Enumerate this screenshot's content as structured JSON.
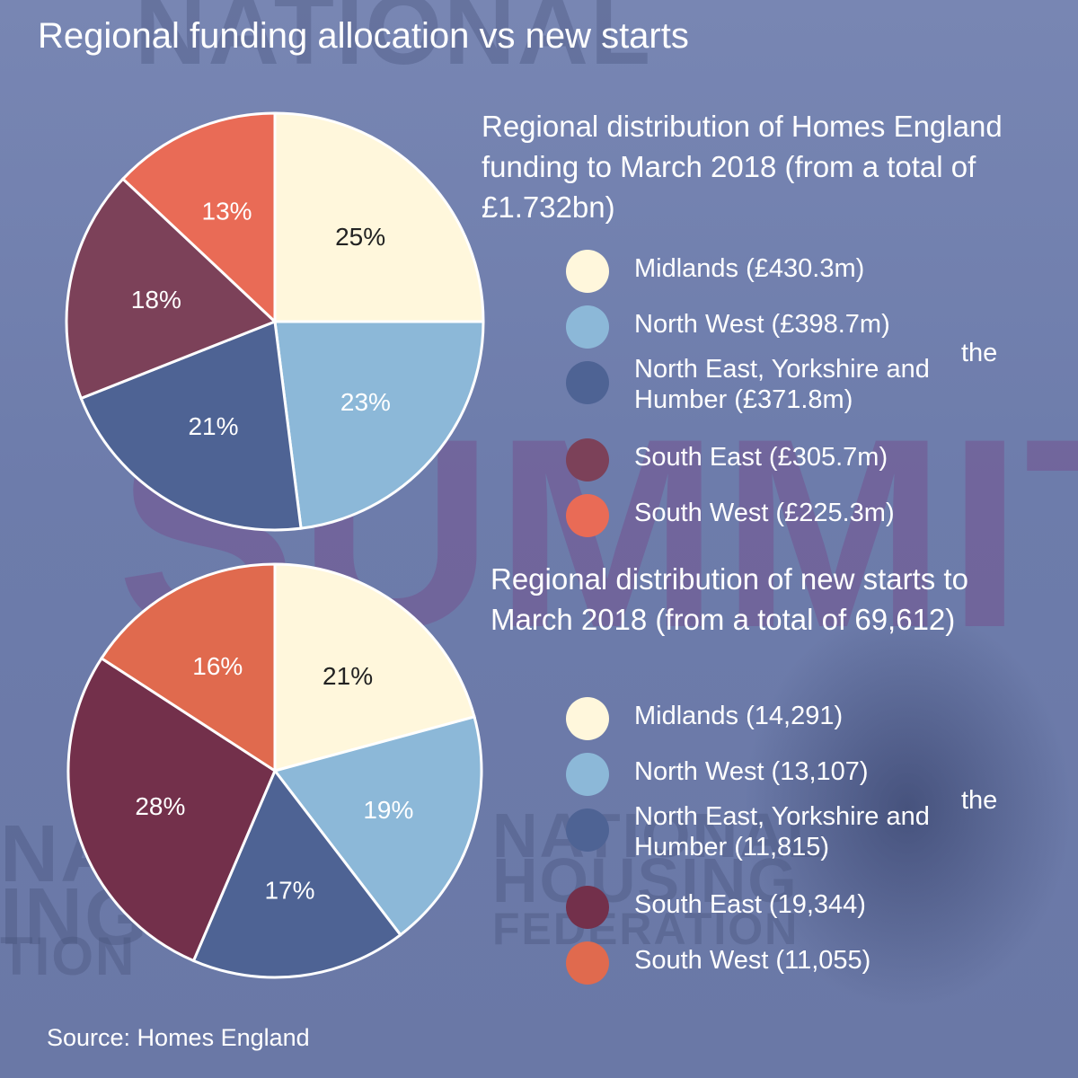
{
  "title": "Regional funding allocation vs new starts",
  "source": "Source: Homes England",
  "colors": {
    "midlands": "#fff7dc",
    "north_west": "#8cb8d8",
    "north_east": "#4e6394",
    "south_east": "#7c4159",
    "south_west": "#e96b56"
  },
  "chart_data": [
    {
      "type": "pie",
      "title": "Regional distribution of Homes England funding to March 2018 (from a total of £1.732bn)",
      "slices": [
        {
          "name": "Midlands",
          "value": 25,
          "label": "25%",
          "legend": "Midlands (£430.3m)",
          "color": "#fff7dc",
          "label_color": "#222222"
        },
        {
          "name": "North West",
          "value": 23,
          "label": "23%",
          "legend": "North West (£398.7m)",
          "color": "#8cb8d8",
          "label_color": "#ffffff"
        },
        {
          "name": "North East, Yorkshire and the Humber",
          "value": 21,
          "label": "21%",
          "legend": "North East, Yorkshire and Humber (£371.8m)",
          "legend_suffix": "the",
          "color": "#4e6394",
          "label_color": "#ffffff"
        },
        {
          "name": "South East",
          "value": 18,
          "label": "18%",
          "legend": "South East (£305.7m)",
          "color": "#7c4159",
          "label_color": "#ffffff"
        },
        {
          "name": "South West",
          "value": 13,
          "label": "13%",
          "legend": "South West (£225.3m)",
          "color": "#e96b56",
          "label_color": "#ffffff"
        }
      ]
    },
    {
      "type": "pie",
      "title": "Regional distribution of new starts to March 2018 (from a total of 69,612)",
      "slices": [
        {
          "name": "Midlands",
          "value": 21,
          "label": "21%",
          "legend": "Midlands (14,291)",
          "color": "#fff7dc",
          "label_color": "#222222"
        },
        {
          "name": "North West",
          "value": 19,
          "label": "19%",
          "legend": "North West (13,107)",
          "color": "#8cb8d8",
          "label_color": "#ffffff"
        },
        {
          "name": "North East, Yorkshire and the Humber",
          "value": 17,
          "label": "17%",
          "legend": "North East, Yorkshire and Humber (11,815)",
          "legend_suffix": "the",
          "color": "#4e6394",
          "label_color": "#ffffff"
        },
        {
          "name": "South East",
          "value": 28,
          "label": "28%",
          "legend": "South East (19,344)",
          "color": "#73304b",
          "label_color": "#ffffff"
        },
        {
          "name": "South West",
          "value": 16,
          "label": "16%",
          "legend": "South West (11,055)",
          "color": "#e06a4e",
          "label_color": "#ffffff"
        }
      ]
    }
  ]
}
